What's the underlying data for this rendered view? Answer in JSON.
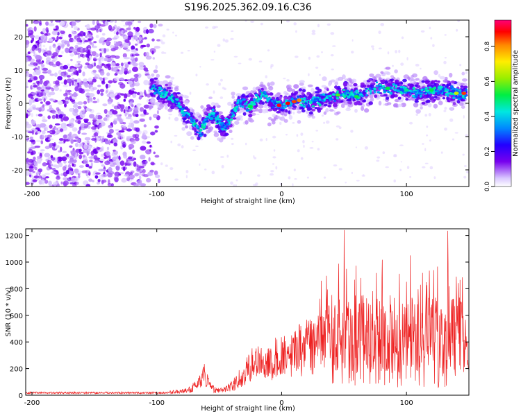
{
  "title": "S196.2025.362.09.16.C36",
  "chart_data": [
    {
      "type": "heatmap",
      "xlabel": "Height of straight line (km)",
      "ylabel": "Frequency (Hz)",
      "xlim": [
        -205,
        150
      ],
      "ylim": [
        -25,
        25
      ],
      "xticks": [
        -200,
        -100,
        0,
        100
      ],
      "yticks": [
        -20,
        -10,
        0,
        10,
        20
      ],
      "colorbar": {
        "label": "Normalized spectral amplitude",
        "range": [
          0,
          0.95
        ],
        "ticks": [
          0.0,
          0.2,
          0.4,
          0.6,
          0.8
        ]
      },
      "ridge": {
        "x": [
          -105,
          -95,
          -85,
          -78,
          -72,
          -65,
          -60,
          -55,
          -50,
          -45,
          -40,
          -35,
          -30,
          -25,
          -20,
          -15,
          -10,
          -5,
          0,
          5,
          10,
          15,
          20,
          30,
          40,
          50,
          60,
          70,
          80,
          90,
          100,
          110,
          120,
          130,
          140,
          148
        ],
        "y": [
          5,
          3,
          1,
          -3,
          -5,
          -9,
          -5,
          -3,
          -6,
          -7,
          -4,
          0,
          0,
          -1,
          1,
          3,
          1,
          0,
          -1,
          0,
          0.5,
          1,
          0,
          1,
          2,
          3,
          2,
          4,
          5,
          4,
          4,
          3,
          4,
          4,
          3,
          3
        ]
      }
    },
    {
      "type": "line",
      "xlabel": "Height of straight line (km)",
      "ylabel": "SNR (10 * v/v)",
      "xlim": [
        -205,
        150
      ],
      "ylim": [
        0,
        1250
      ],
      "xticks": [
        -200,
        -100,
        0,
        100
      ],
      "yticks": [
        0,
        200,
        400,
        600,
        800,
        1000,
        1200
      ],
      "color": "#ee2222",
      "envelope": {
        "x": [
          -205,
          -150,
          -110,
          -90,
          -75,
          -68,
          -62,
          -58,
          -52,
          -45,
          -40,
          -35,
          -30,
          -25,
          -20,
          -15,
          -10,
          -5,
          0,
          10,
          20,
          30,
          40,
          50,
          60,
          70,
          80,
          90,
          100,
          110,
          120,
          130,
          140,
          150
        ],
        "y": [
          20,
          20,
          20,
          25,
          40,
          90,
          190,
          80,
          40,
          50,
          80,
          130,
          180,
          260,
          300,
          250,
          280,
          320,
          330,
          380,
          420,
          470,
          520,
          550,
          560,
          560,
          550,
          560,
          540,
          550,
          540,
          560,
          540,
          420
        ]
      },
      "peaks": [
        {
          "x": 50,
          "y": 1240
        },
        {
          "x": 103,
          "y": 1050
        },
        {
          "x": 133,
          "y": 1235
        }
      ]
    }
  ]
}
